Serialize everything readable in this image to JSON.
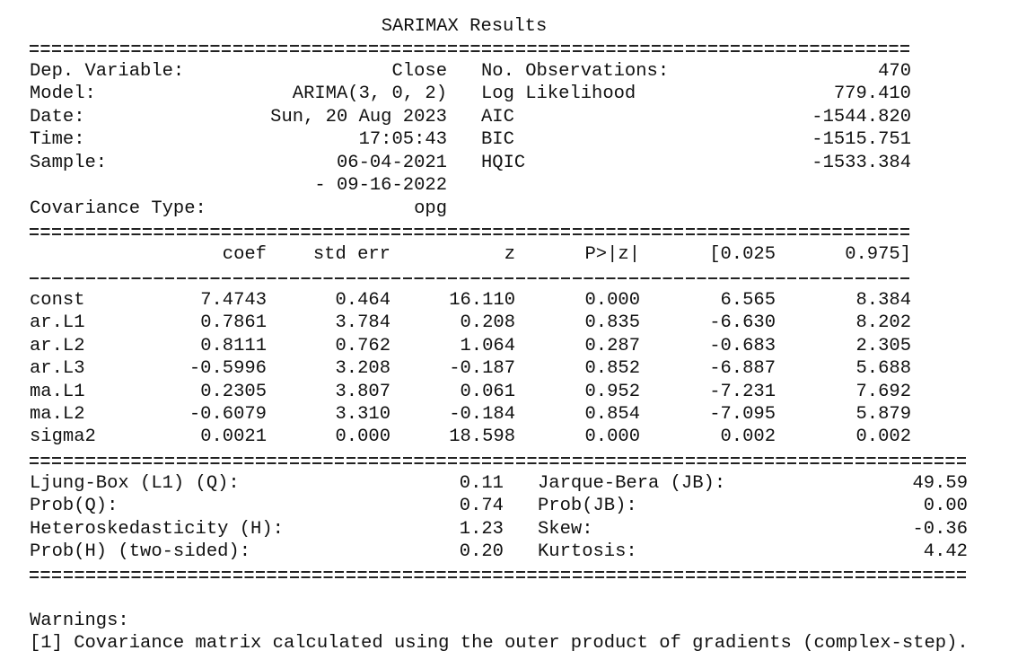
{
  "title": "SARIMAX Results",
  "summary": {
    "left": [
      {
        "label": "Dep. Variable:",
        "value": "Close"
      },
      {
        "label": "Model:",
        "value": "ARIMA(3, 0, 2)"
      },
      {
        "label": "Date:",
        "value": "Sun, 20 Aug 2023"
      },
      {
        "label": "Time:",
        "value": "17:05:43"
      },
      {
        "label": "Sample:",
        "value": "06-04-2021"
      }
    ],
    "sample_end": "- 09-16-2022",
    "covariance": {
      "label": "Covariance Type:",
      "value": "opg"
    },
    "right": [
      {
        "label": "No. Observations:",
        "value": "470"
      },
      {
        "label": "Log Likelihood",
        "value": "779.410"
      },
      {
        "label": "AIC",
        "value": "-1544.820"
      },
      {
        "label": "BIC",
        "value": "-1515.751"
      },
      {
        "label": "HQIC",
        "value": "-1533.384"
      }
    ]
  },
  "params": {
    "header": [
      "coef",
      "std err",
      "z",
      "P>|z|",
      "[0.025",
      "0.975]"
    ],
    "rows": [
      [
        "const",
        "7.4743",
        "0.464",
        "16.110",
        "0.000",
        "6.565",
        "8.384"
      ],
      [
        "ar.L1",
        "0.7861",
        "3.784",
        "0.208",
        "0.835",
        "-6.630",
        "8.202"
      ],
      [
        "ar.L2",
        "0.8111",
        "0.762",
        "1.064",
        "0.287",
        "-0.683",
        "2.305"
      ],
      [
        "ar.L3",
        "-0.5996",
        "3.208",
        "-0.187",
        "0.852",
        "-6.887",
        "5.688"
      ],
      [
        "ma.L1",
        "0.2305",
        "3.807",
        "0.061",
        "0.952",
        "-7.231",
        "7.692"
      ],
      [
        "ma.L2",
        "-0.6079",
        "3.310",
        "-0.184",
        "0.854",
        "-7.095",
        "5.879"
      ],
      [
        "sigma2",
        "0.0021",
        "0.000",
        "18.598",
        "0.000",
        "0.002",
        "0.002"
      ]
    ]
  },
  "diagnostics": {
    "left": [
      {
        "label": "Ljung-Box (L1) (Q):",
        "value": "0.11"
      },
      {
        "label": "Prob(Q):",
        "value": "0.74"
      },
      {
        "label": "Heteroskedasticity (H):",
        "value": "1.23"
      },
      {
        "label": "Prob(H) (two-sided):",
        "value": "0.20"
      }
    ],
    "right": [
      {
        "label": "Jarque-Bera (JB):",
        "value": "49.59"
      },
      {
        "label": "Prob(JB):",
        "value": "0.00"
      },
      {
        "label": "Skew:",
        "value": "-0.36"
      },
      {
        "label": "Kurtosis:",
        "value": "4.42"
      }
    ]
  },
  "warnings": {
    "title": "Warnings:",
    "items": [
      "[1] Covariance matrix calculated using the outer product of gradients (complex-step)."
    ]
  }
}
